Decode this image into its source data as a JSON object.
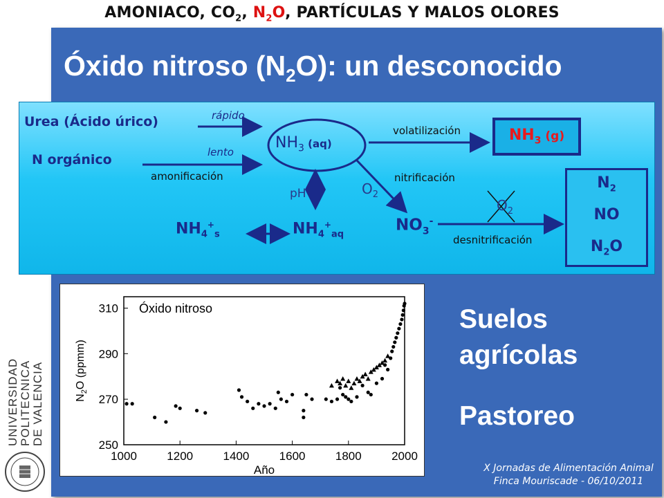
{
  "header": {
    "title_pre": "AMONIACO, CO",
    "title_sub2": "2",
    "title_comma": ", ",
    "title_n2o_a": "N",
    "title_n2o_b": "2",
    "title_n2o_c": "O",
    "title_post": ", PARTÍCULAS Y MALOS OLORES"
  },
  "slide": {
    "title_a": "Óxido nitroso (N",
    "title_sub": "2",
    "title_b": "O): un desconocido"
  },
  "diagram": {
    "urea": "Urea (Ácido úrico)",
    "n_organico": "N orgánico",
    "rapido": "rápido",
    "lento": "lento",
    "amonificacion": "amonificación",
    "nh3aq_main": "NH",
    "nh3aq_sub": "3",
    "nh3aq_tail": " (aq)",
    "volatilizacion": "volatilización",
    "nh3g_main": "NH",
    "nh3g_sub": "3",
    "nh3g_tail": " (g)",
    "ph": "pH",
    "o2_a": "O",
    "o2_sub": "2",
    "nitrificacion": "nitrificación",
    "nh4s_main": "NH",
    "nh4s_sub": "4",
    "nh4s_sup": "+",
    "nh4s_tail": "s",
    "nh4aq_main": "NH",
    "nh4aq_sub": "4",
    "nh4aq_sup": "+",
    "nh4aq_tail": "aq",
    "no3_main": "NO",
    "no3_sub": "3",
    "no3_sup": "-",
    "o2_crossed": "O",
    "o2_crossed_sub": "2",
    "desnitrificacion": "desnitrificación",
    "products": [
      {
        "main": "N",
        "sub": "2",
        "tail": ""
      },
      {
        "main": "NO",
        "sub": "",
        "tail": ""
      },
      {
        "main": "N",
        "sub": "2",
        "tail": "O"
      }
    ]
  },
  "side": {
    "suelos": "Suelos",
    "agricolas": "agrícolas",
    "pastoreo": "Pastoreo"
  },
  "footer": {
    "line1": "X Jornadas de Alimentación Animal",
    "line2": "Finca Mouriscade  -  06/10/2011"
  },
  "university": {
    "lines": [
      "UNIVERSIDAD",
      "POLITECNICA",
      "DE VALENCIA"
    ]
  },
  "chart_data": {
    "type": "scatter",
    "title": "Óxido nitroso",
    "xlabel": "Año",
    "ylabel_a": "N",
    "ylabel_sub": "2",
    "ylabel_b": "O (ppmm)",
    "xlim": [
      1000,
      2000
    ],
    "ylim": [
      250,
      315
    ],
    "xticks": [
      "1000",
      "1200",
      "1400",
      "1600",
      "1800",
      "2000"
    ],
    "yticks": [
      "250",
      "270",
      "290",
      "310"
    ],
    "ytick_values": [
      250,
      270,
      290,
      310
    ],
    "xtick_values": [
      1000,
      1200,
      1400,
      1600,
      1800,
      2000
    ],
    "series": [
      {
        "marker": "circle",
        "points": [
          [
            1010,
            268
          ],
          [
            1030,
            268
          ],
          [
            1110,
            262
          ],
          [
            1150,
            260
          ],
          [
            1185,
            267
          ],
          [
            1200,
            266
          ],
          [
            1260,
            265
          ],
          [
            1290,
            264
          ],
          [
            1410,
            274
          ],
          [
            1420,
            271
          ],
          [
            1440,
            269
          ],
          [
            1460,
            266
          ],
          [
            1480,
            268
          ],
          [
            1500,
            267
          ],
          [
            1520,
            268
          ],
          [
            1540,
            266
          ],
          [
            1550,
            273
          ],
          [
            1560,
            270
          ],
          [
            1580,
            269
          ],
          [
            1600,
            272
          ],
          [
            1640,
            265
          ],
          [
            1640,
            262
          ],
          [
            1650,
            272
          ],
          [
            1670,
            270
          ],
          [
            1720,
            270
          ],
          [
            1740,
            269
          ],
          [
            1760,
            270
          ],
          [
            1770,
            275
          ],
          [
            1780,
            272
          ],
          [
            1790,
            271
          ],
          [
            1800,
            270
          ],
          [
            1810,
            269
          ],
          [
            1830,
            271
          ],
          [
            1850,
            276
          ],
          [
            1870,
            273
          ],
          [
            1880,
            272
          ],
          [
            1900,
            277
          ],
          [
            1920,
            279
          ],
          [
            1930,
            285
          ],
          [
            1940,
            283
          ],
          [
            1950,
            288
          ],
          [
            1955,
            291
          ],
          [
            1960,
            293
          ],
          [
            1965,
            295
          ],
          [
            1970,
            297
          ],
          [
            1975,
            299
          ],
          [
            1980,
            301
          ],
          [
            1985,
            303
          ],
          [
            1990,
            305
          ],
          [
            1993,
            307
          ],
          [
            1996,
            309
          ],
          [
            1998,
            311
          ],
          [
            2000,
            312
          ]
        ]
      },
      {
        "marker": "triangle",
        "points": [
          [
            1740,
            276
          ],
          [
            1760,
            278
          ],
          [
            1770,
            277
          ],
          [
            1780,
            279
          ],
          [
            1790,
            276
          ],
          [
            1800,
            278
          ],
          [
            1810,
            275
          ],
          [
            1820,
            277
          ],
          [
            1830,
            279
          ],
          [
            1840,
            278
          ],
          [
            1850,
            280
          ],
          [
            1860,
            281
          ],
          [
            1870,
            279
          ],
          [
            1880,
            282
          ],
          [
            1890,
            283
          ],
          [
            1900,
            284
          ],
          [
            1910,
            285
          ],
          [
            1920,
            286
          ],
          [
            1930,
            287
          ],
          [
            1940,
            289
          ]
        ]
      }
    ]
  }
}
